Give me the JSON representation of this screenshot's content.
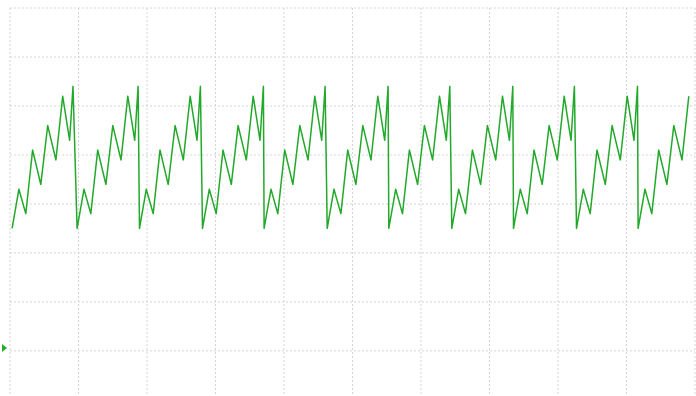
{
  "chart_data": {
    "type": "line",
    "color": "#22a82a",
    "grid": true,
    "xlim": [
      0,
      10
    ],
    "ylim": [
      -3.9,
      4
    ],
    "xticks": [
      0,
      1,
      2,
      3,
      4,
      5,
      6,
      7,
      8,
      9,
      10
    ],
    "yticks": [
      -3,
      -2,
      -1,
      0,
      1,
      2,
      3,
      4
    ],
    "x": [
      0.03,
      0.13,
      0.23,
      0.33,
      0.45,
      0.55,
      0.67,
      0.77,
      0.87,
      0.92,
      0.98,
      1.08,
      1.18,
      1.28,
      1.4,
      1.5,
      1.62,
      1.72,
      1.82,
      1.87,
      1.89,
      1.99,
      2.09,
      2.19,
      2.31,
      2.41,
      2.53,
      2.63,
      2.73,
      2.78,
      2.81,
      2.91,
      3.01,
      3.11,
      3.23,
      3.33,
      3.45,
      3.55,
      3.65,
      3.7,
      3.71,
      3.81,
      3.91,
      4.01,
      4.13,
      4.23,
      4.35,
      4.45,
      4.55,
      4.6,
      4.63,
      4.73,
      4.83,
      4.93,
      5.05,
      5.15,
      5.27,
      5.37,
      5.47,
      5.52,
      5.53,
      5.63,
      5.73,
      5.83,
      5.95,
      6.05,
      6.17,
      6.27,
      6.37,
      6.42,
      6.45,
      6.55,
      6.65,
      6.75,
      6.87,
      6.97,
      7.09,
      7.19,
      7.29,
      7.34,
      7.35,
      7.45,
      7.55,
      7.65,
      7.77,
      7.87,
      7.99,
      8.09,
      8.19,
      8.24,
      8.27,
      8.37,
      8.47,
      8.57,
      8.69,
      8.79,
      8.91,
      9.01,
      9.11,
      9.16,
      9.17,
      9.27,
      9.37,
      9.47,
      9.59,
      9.69,
      9.81,
      9.91
    ],
    "values": [
      -0.5,
      0.3,
      -0.2,
      1.1,
      0.4,
      1.6,
      0.9,
      2.2,
      1.3,
      2.4,
      -0.5,
      0.3,
      -0.2,
      1.1,
      0.4,
      1.6,
      0.9,
      2.2,
      1.3,
      2.4,
      -0.5,
      0.3,
      -0.2,
      1.1,
      0.4,
      1.6,
      0.9,
      2.2,
      1.3,
      2.4,
      -0.5,
      0.3,
      -0.2,
      1.1,
      0.4,
      1.6,
      0.9,
      2.2,
      1.3,
      2.4,
      -0.5,
      0.3,
      -0.2,
      1.1,
      0.4,
      1.6,
      0.9,
      2.2,
      1.3,
      2.4,
      -0.5,
      0.3,
      -0.2,
      1.1,
      0.4,
      1.6,
      0.9,
      2.2,
      1.3,
      2.4,
      -0.5,
      0.3,
      -0.2,
      1.1,
      0.4,
      1.6,
      0.9,
      2.2,
      1.3,
      2.4,
      -0.5,
      0.3,
      -0.2,
      1.1,
      0.4,
      1.6,
      0.9,
      2.2,
      1.3,
      2.4,
      -0.5,
      0.3,
      -0.2,
      1.1,
      0.4,
      1.6,
      0.9,
      2.2,
      1.3,
      2.4,
      -0.5,
      0.3,
      -0.2,
      1.1,
      0.4,
      1.6,
      0.9,
      2.2,
      1.3,
      2.4,
      -0.5,
      0.3,
      -0.2,
      1.1,
      0.4,
      1.6,
      0.9,
      2.2
    ]
  }
}
